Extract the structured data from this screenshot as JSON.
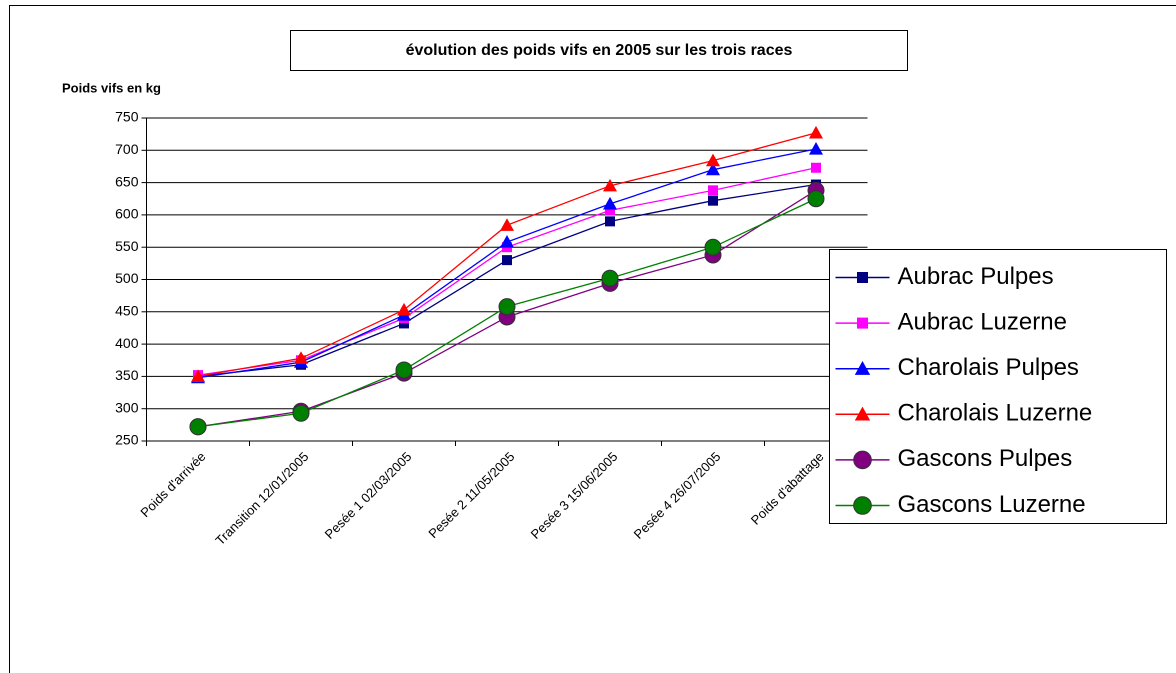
{
  "chart_data": {
    "type": "line",
    "title": "évolution des poids vifs en 2005 sur les trois races",
    "y_label": "Poids vifs en kg",
    "categories": [
      "Poids  d'arrivée",
      "Transition 12/01/2005",
      "Pesée 1 02/03/2005",
      "Pesée 2 11/05/2005",
      "Pesée 3 15/06/2005",
      "Pesée 4 26/07/2005",
      "Poids  d'abattage"
    ],
    "ylim": [
      250,
      750
    ],
    "yticks": [
      250,
      300,
      350,
      400,
      450,
      500,
      550,
      600,
      650,
      700,
      750
    ],
    "grid": true,
    "legend": "right",
    "series": [
      {
        "name": "Aubrac Pulpes",
        "color": "#000080",
        "marker": "square",
        "values": [
          350,
          368,
          432,
          530,
          590,
          622,
          647
        ]
      },
      {
        "name": "Aubrac Luzerne",
        "color": "#ff00ff",
        "marker": "square",
        "values": [
          352,
          375,
          440,
          550,
          607,
          638,
          673
        ]
      },
      {
        "name": "Charolais Pulpes",
        "color": "#0000ff",
        "marker": "triangle",
        "values": [
          348,
          372,
          445,
          558,
          617,
          670,
          702
        ]
      },
      {
        "name": "Charolais Luzerne",
        "color": "#ff0000",
        "marker": "triangle",
        "values": [
          350,
          378,
          453,
          584,
          645,
          684,
          727
        ]
      },
      {
        "name": "Gascons Pulpes",
        "color": "#800080",
        "marker": "circle",
        "values": [
          272,
          296,
          355,
          442,
          494,
          538,
          638
        ]
      },
      {
        "name": "Gascons Luzerne",
        "color": "#008000",
        "marker": "circle",
        "values": [
          272,
          293,
          360,
          458,
          502,
          550,
          625
        ]
      }
    ]
  }
}
